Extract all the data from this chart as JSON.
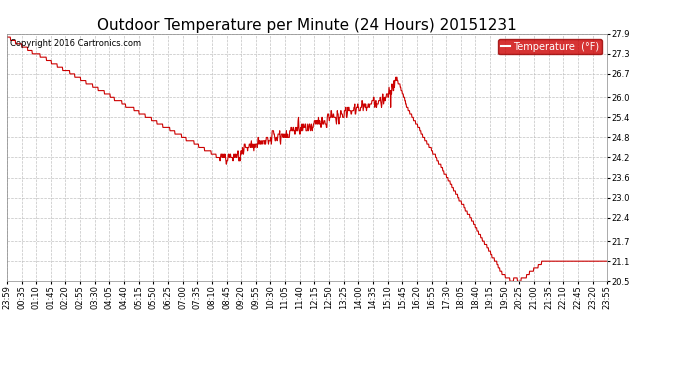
{
  "title": "Outdoor Temperature per Minute (24 Hours) 20151231",
  "copyright_text": "Copyright 2016 Cartronics.com",
  "legend_label": "Temperature  (°F)",
  "legend_bg": "#cc0000",
  "legend_text_color": "#ffffff",
  "line_color": "#cc0000",
  "line_width": 0.8,
  "background_color": "#ffffff",
  "grid_color": "#bbbbbb",
  "grid_style": "--",
  "ylim": [
    20.5,
    27.9
  ],
  "yticks": [
    20.5,
    21.1,
    21.7,
    22.4,
    23.0,
    23.6,
    24.2,
    24.8,
    25.4,
    26.0,
    26.7,
    27.3,
    27.9
  ],
  "xtick_labels": [
    "23:59",
    "00:35",
    "01:10",
    "01:45",
    "02:20",
    "02:55",
    "03:30",
    "04:05",
    "04:40",
    "05:15",
    "05:50",
    "06:25",
    "07:00",
    "07:35",
    "08:10",
    "08:45",
    "09:20",
    "09:55",
    "10:30",
    "11:05",
    "11:40",
    "12:15",
    "12:50",
    "13:25",
    "14:00",
    "14:35",
    "15:10",
    "15:45",
    "16:20",
    "16:55",
    "17:30",
    "18:05",
    "18:40",
    "19:15",
    "19:50",
    "20:25",
    "21:00",
    "21:35",
    "22:10",
    "22:45",
    "23:20",
    "23:55"
  ],
  "title_fontsize": 11,
  "tick_fontsize": 6,
  "copyright_fontsize": 6
}
